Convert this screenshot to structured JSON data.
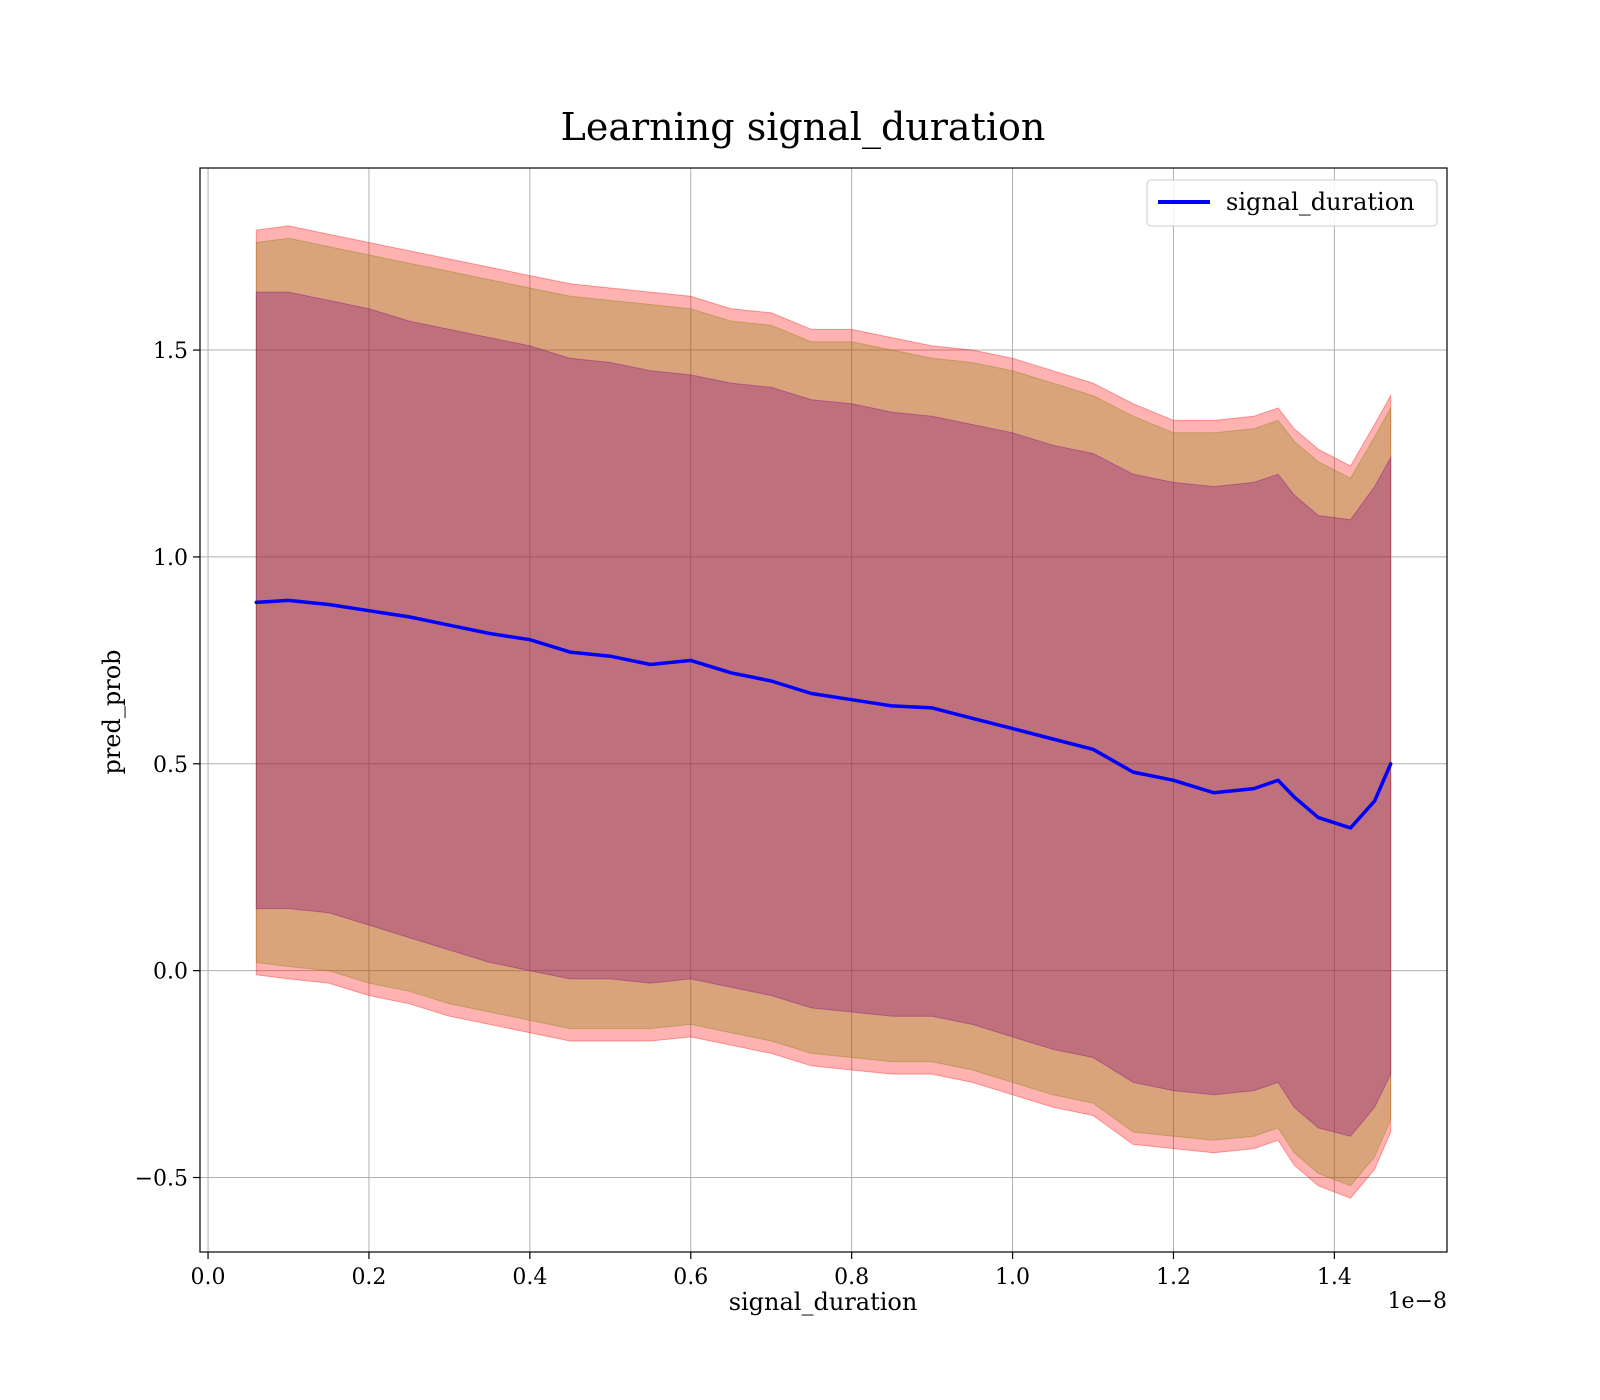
{
  "chart_data": {
    "type": "line",
    "title": "Learning signal_duration",
    "xlabel": "signal_duration",
    "ylabel": "pred_prob",
    "x_offset_text": "1e−8",
    "xlim": [
      -0.01,
      1.54
    ],
    "ylim": [
      -0.68,
      1.94
    ],
    "x_ticks": [
      0.0,
      0.2,
      0.4,
      0.6,
      0.8,
      1.0,
      1.2,
      1.4
    ],
    "x_tick_labels": [
      "0.0",
      "0.2",
      "0.4",
      "0.6",
      "0.8",
      "1.0",
      "1.2",
      "1.4"
    ],
    "y_ticks": [
      -0.5,
      0.0,
      0.5,
      1.0,
      1.5
    ],
    "y_tick_labels": [
      "−0.5",
      "0.0",
      "0.5",
      "1.0",
      "1.5"
    ],
    "grid": true,
    "legend_position": "top-right",
    "colors": {
      "line": "#0000ff",
      "band_outer": "#ff0000",
      "band_mid": "#808000",
      "band_inner": "#800080",
      "grid": "#b0b0b0"
    },
    "series": [
      {
        "name": "signal_duration",
        "x": [
          0.06,
          0.1,
          0.15,
          0.2,
          0.25,
          0.3,
          0.35,
          0.4,
          0.45,
          0.5,
          0.55,
          0.6,
          0.65,
          0.7,
          0.75,
          0.8,
          0.85,
          0.9,
          0.95,
          1.0,
          1.05,
          1.1,
          1.15,
          1.2,
          1.25,
          1.3,
          1.33,
          1.35,
          1.38,
          1.42,
          1.45,
          1.47
        ],
        "y": [
          0.89,
          0.895,
          0.885,
          0.87,
          0.855,
          0.835,
          0.815,
          0.8,
          0.77,
          0.76,
          0.74,
          0.75,
          0.72,
          0.7,
          0.67,
          0.655,
          0.64,
          0.635,
          0.61,
          0.585,
          0.56,
          0.535,
          0.48,
          0.46,
          0.43,
          0.44,
          0.46,
          0.42,
          0.37,
          0.345,
          0.41,
          0.5
        ]
      }
    ],
    "bands": [
      {
        "color_key": "band_outer",
        "x": [
          0.06,
          0.1,
          0.15,
          0.2,
          0.25,
          0.3,
          0.35,
          0.4,
          0.45,
          0.5,
          0.55,
          0.6,
          0.65,
          0.7,
          0.75,
          0.8,
          0.85,
          0.9,
          0.95,
          1.0,
          1.05,
          1.1,
          1.15,
          1.2,
          1.25,
          1.3,
          1.33,
          1.35,
          1.38,
          1.42,
          1.45,
          1.47
        ],
        "upper": [
          1.79,
          1.8,
          1.78,
          1.76,
          1.74,
          1.72,
          1.7,
          1.68,
          1.66,
          1.65,
          1.64,
          1.63,
          1.6,
          1.59,
          1.55,
          1.55,
          1.53,
          1.51,
          1.5,
          1.48,
          1.45,
          1.42,
          1.37,
          1.33,
          1.33,
          1.34,
          1.36,
          1.31,
          1.26,
          1.22,
          1.32,
          1.39
        ],
        "lower": [
          -0.01,
          -0.02,
          -0.03,
          -0.06,
          -0.08,
          -0.11,
          -0.13,
          -0.15,
          -0.17,
          -0.17,
          -0.17,
          -0.16,
          -0.18,
          -0.2,
          -0.23,
          -0.24,
          -0.25,
          -0.25,
          -0.27,
          -0.3,
          -0.33,
          -0.35,
          -0.42,
          -0.43,
          -0.44,
          -0.43,
          -0.41,
          -0.47,
          -0.52,
          -0.55,
          -0.48,
          -0.39
        ]
      },
      {
        "color_key": "band_mid",
        "x": [
          0.06,
          0.1,
          0.15,
          0.2,
          0.25,
          0.3,
          0.35,
          0.4,
          0.45,
          0.5,
          0.55,
          0.6,
          0.65,
          0.7,
          0.75,
          0.8,
          0.85,
          0.9,
          0.95,
          1.0,
          1.05,
          1.1,
          1.15,
          1.2,
          1.25,
          1.3,
          1.33,
          1.35,
          1.38,
          1.42,
          1.45,
          1.47
        ],
        "upper": [
          1.76,
          1.77,
          1.75,
          1.73,
          1.71,
          1.69,
          1.67,
          1.65,
          1.63,
          1.62,
          1.61,
          1.6,
          1.57,
          1.56,
          1.52,
          1.52,
          1.5,
          1.48,
          1.47,
          1.45,
          1.42,
          1.39,
          1.34,
          1.3,
          1.3,
          1.31,
          1.33,
          1.28,
          1.23,
          1.19,
          1.29,
          1.36
        ],
        "lower": [
          0.02,
          0.01,
          0.0,
          -0.03,
          -0.05,
          -0.08,
          -0.1,
          -0.12,
          -0.14,
          -0.14,
          -0.14,
          -0.13,
          -0.15,
          -0.17,
          -0.2,
          -0.21,
          -0.22,
          -0.22,
          -0.24,
          -0.27,
          -0.3,
          -0.32,
          -0.39,
          -0.4,
          -0.41,
          -0.4,
          -0.38,
          -0.44,
          -0.49,
          -0.52,
          -0.45,
          -0.36
        ]
      },
      {
        "color_key": "band_inner",
        "x": [
          0.06,
          0.1,
          0.15,
          0.2,
          0.25,
          0.3,
          0.35,
          0.4,
          0.45,
          0.5,
          0.55,
          0.6,
          0.65,
          0.7,
          0.75,
          0.8,
          0.85,
          0.9,
          0.95,
          1.0,
          1.05,
          1.1,
          1.15,
          1.2,
          1.25,
          1.3,
          1.33,
          1.35,
          1.38,
          1.42,
          1.45,
          1.47
        ],
        "upper": [
          1.64,
          1.64,
          1.62,
          1.6,
          1.57,
          1.55,
          1.53,
          1.51,
          1.48,
          1.47,
          1.45,
          1.44,
          1.42,
          1.41,
          1.38,
          1.37,
          1.35,
          1.34,
          1.32,
          1.3,
          1.27,
          1.25,
          1.2,
          1.18,
          1.17,
          1.18,
          1.2,
          1.15,
          1.1,
          1.09,
          1.17,
          1.24
        ],
        "lower": [
          0.15,
          0.15,
          0.14,
          0.11,
          0.08,
          0.05,
          0.02,
          0.0,
          -0.02,
          -0.02,
          -0.03,
          -0.02,
          -0.04,
          -0.06,
          -0.09,
          -0.1,
          -0.11,
          -0.11,
          -0.13,
          -0.16,
          -0.19,
          -0.21,
          -0.27,
          -0.29,
          -0.3,
          -0.29,
          -0.27,
          -0.33,
          -0.38,
          -0.4,
          -0.33,
          -0.25
        ]
      }
    ]
  }
}
